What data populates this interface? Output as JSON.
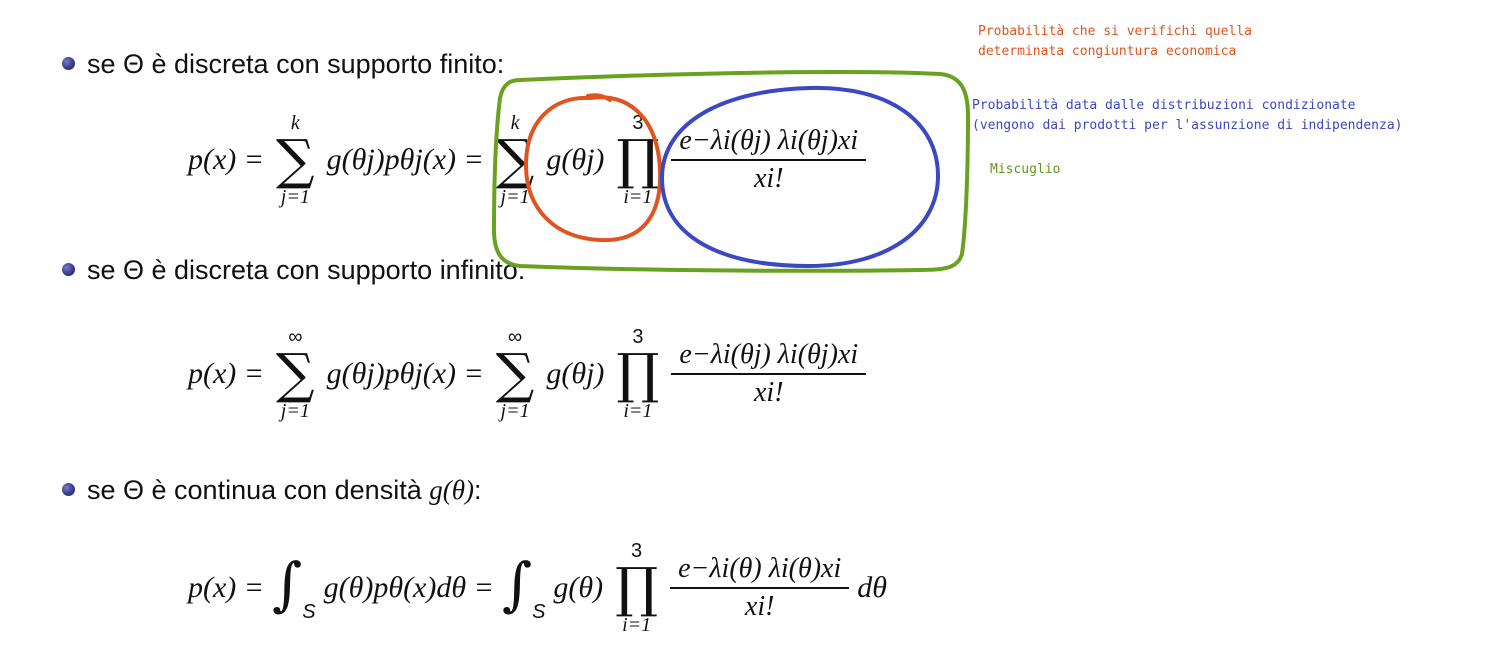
{
  "bullets": [
    {
      "text": "se Θ è discreta con supporto finito:"
    },
    {
      "text": "se Θ è discreta con supporto infinito:"
    },
    {
      "text_prefix": "se Θ è continua con densità ",
      "text_math": "g(θ)",
      "text_suffix": ":"
    }
  ],
  "formulas": {
    "finite": {
      "lhs": "p(x) =",
      "sum1": {
        "upper": "k",
        "lower": "j=1"
      },
      "term1": "g(θj)pθj(x) =",
      "sum2": {
        "upper": "k",
        "lower": "j=1"
      },
      "term2": "g(θj)",
      "prod": {
        "upper": "3",
        "lower": "i=1"
      },
      "numerator": "e−λi(θj) λi(θj)xi",
      "denominator": "xi!"
    },
    "infinite": {
      "lhs": "p(x) =",
      "sum1": {
        "upper": "∞",
        "lower": "j=1"
      },
      "term1": "g(θj)pθj(x) =",
      "sum2": {
        "upper": "∞",
        "lower": "j=1"
      },
      "term2": "g(θj)",
      "prod": {
        "upper": "3",
        "lower": "i=1"
      },
      "numerator": "e−λi(θj) λi(θj)xi",
      "denominator": "xi!"
    },
    "continuous": {
      "lhs": "p(x) =",
      "int1_sub": "S",
      "term1": "g(θ)pθ(x)dθ =",
      "int2_sub": "S",
      "term2": "g(θ)",
      "prod": {
        "upper": "3",
        "lower": "i=1"
      },
      "numerator": "e−λi(θ) λi(θ)xi",
      "denominator": "xi!",
      "tail": "dθ"
    }
  },
  "annotations": {
    "orange": {
      "lines": [
        "Probabilità che si verifichi quella",
        "determinata congiuntura economica"
      ],
      "color": "#e0541f"
    },
    "blue": {
      "lines": [
        "Probabilità data dalle distribuzioni condizionate",
        "(vengono dai prodotti per l'assunzione di indipendenza)"
      ],
      "color": "#3b48c4"
    },
    "green": {
      "text": "Miscuglio",
      "color": "#5e9a1c"
    }
  },
  "colors": {
    "orange_stroke": "#e0541f",
    "blue_stroke": "#3b48c4",
    "green_stroke": "#6aa121"
  }
}
